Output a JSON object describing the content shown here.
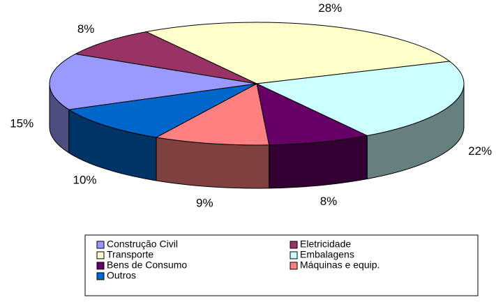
{
  "chart_data": {
    "type": "pie3d",
    "categories": [
      "Construção Civil",
      "Eletricidade",
      "Transporte",
      "Embalagens",
      "Bens de Consumo",
      "Máquinas e equip.",
      "Outros"
    ],
    "values": [
      15,
      8,
      28,
      22,
      8,
      9,
      10
    ],
    "value_labels": [
      "15%",
      "8%",
      "28%",
      "22%",
      "8%",
      "9%",
      "10%"
    ],
    "colors": [
      "#9999ff",
      "#993366",
      "#ffffcc",
      "#ccffff",
      "#660066",
      "#ff8080",
      "#0066cc"
    ],
    "legend": "bottom"
  }
}
